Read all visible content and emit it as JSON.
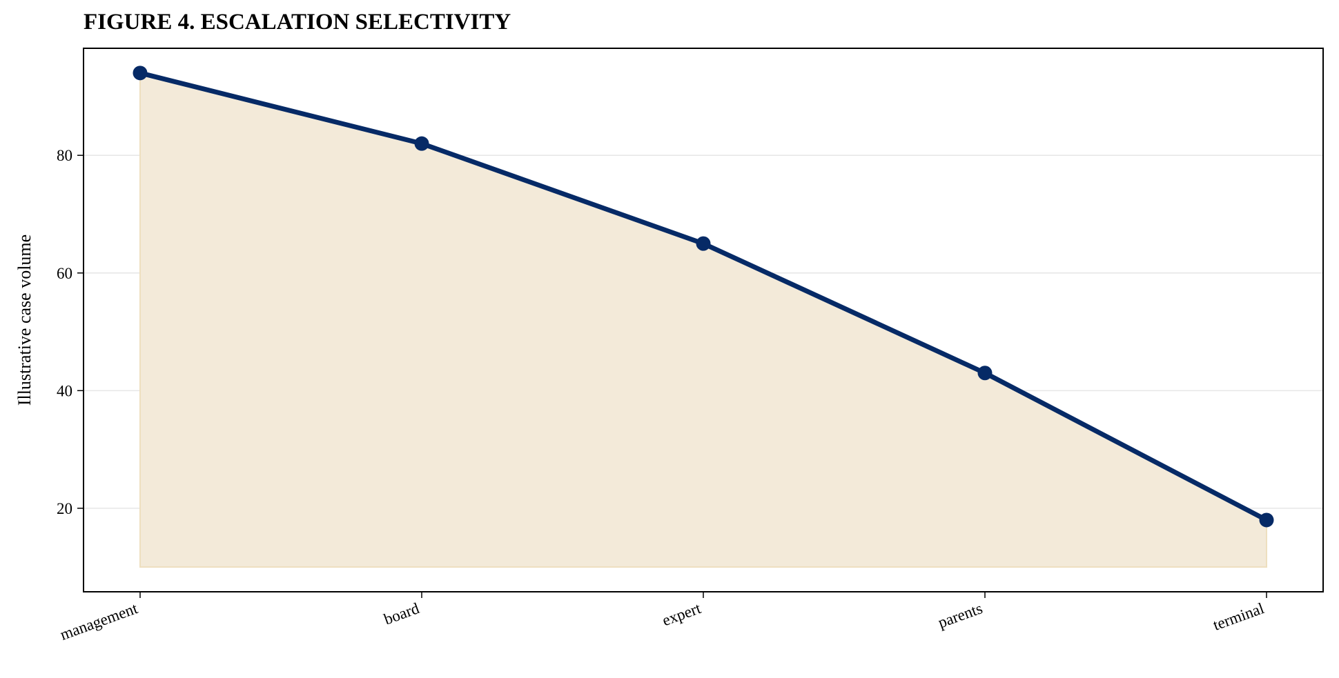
{
  "chart_data": {
    "type": "area",
    "title": "FIGURE 4. ESCALATION SELECTIVITY",
    "xlabel": "",
    "ylabel": "Illustrative case volume",
    "categories": [
      "management",
      "board",
      "expert",
      "parents",
      "terminal"
    ],
    "series": [
      {
        "values": [
          94,
          82,
          65,
          43,
          18
        ]
      }
    ],
    "fill_baseline": 10,
    "ylim": [
      5.8,
      98.2
    ],
    "yticks": [
      20,
      40,
      60,
      80
    ],
    "grid": "y",
    "legend": "none",
    "colors": {
      "line": "#062a66",
      "fill": "#f3ead9",
      "fill_edge": "#eedfbf",
      "grid": "#e6e6e6"
    }
  }
}
